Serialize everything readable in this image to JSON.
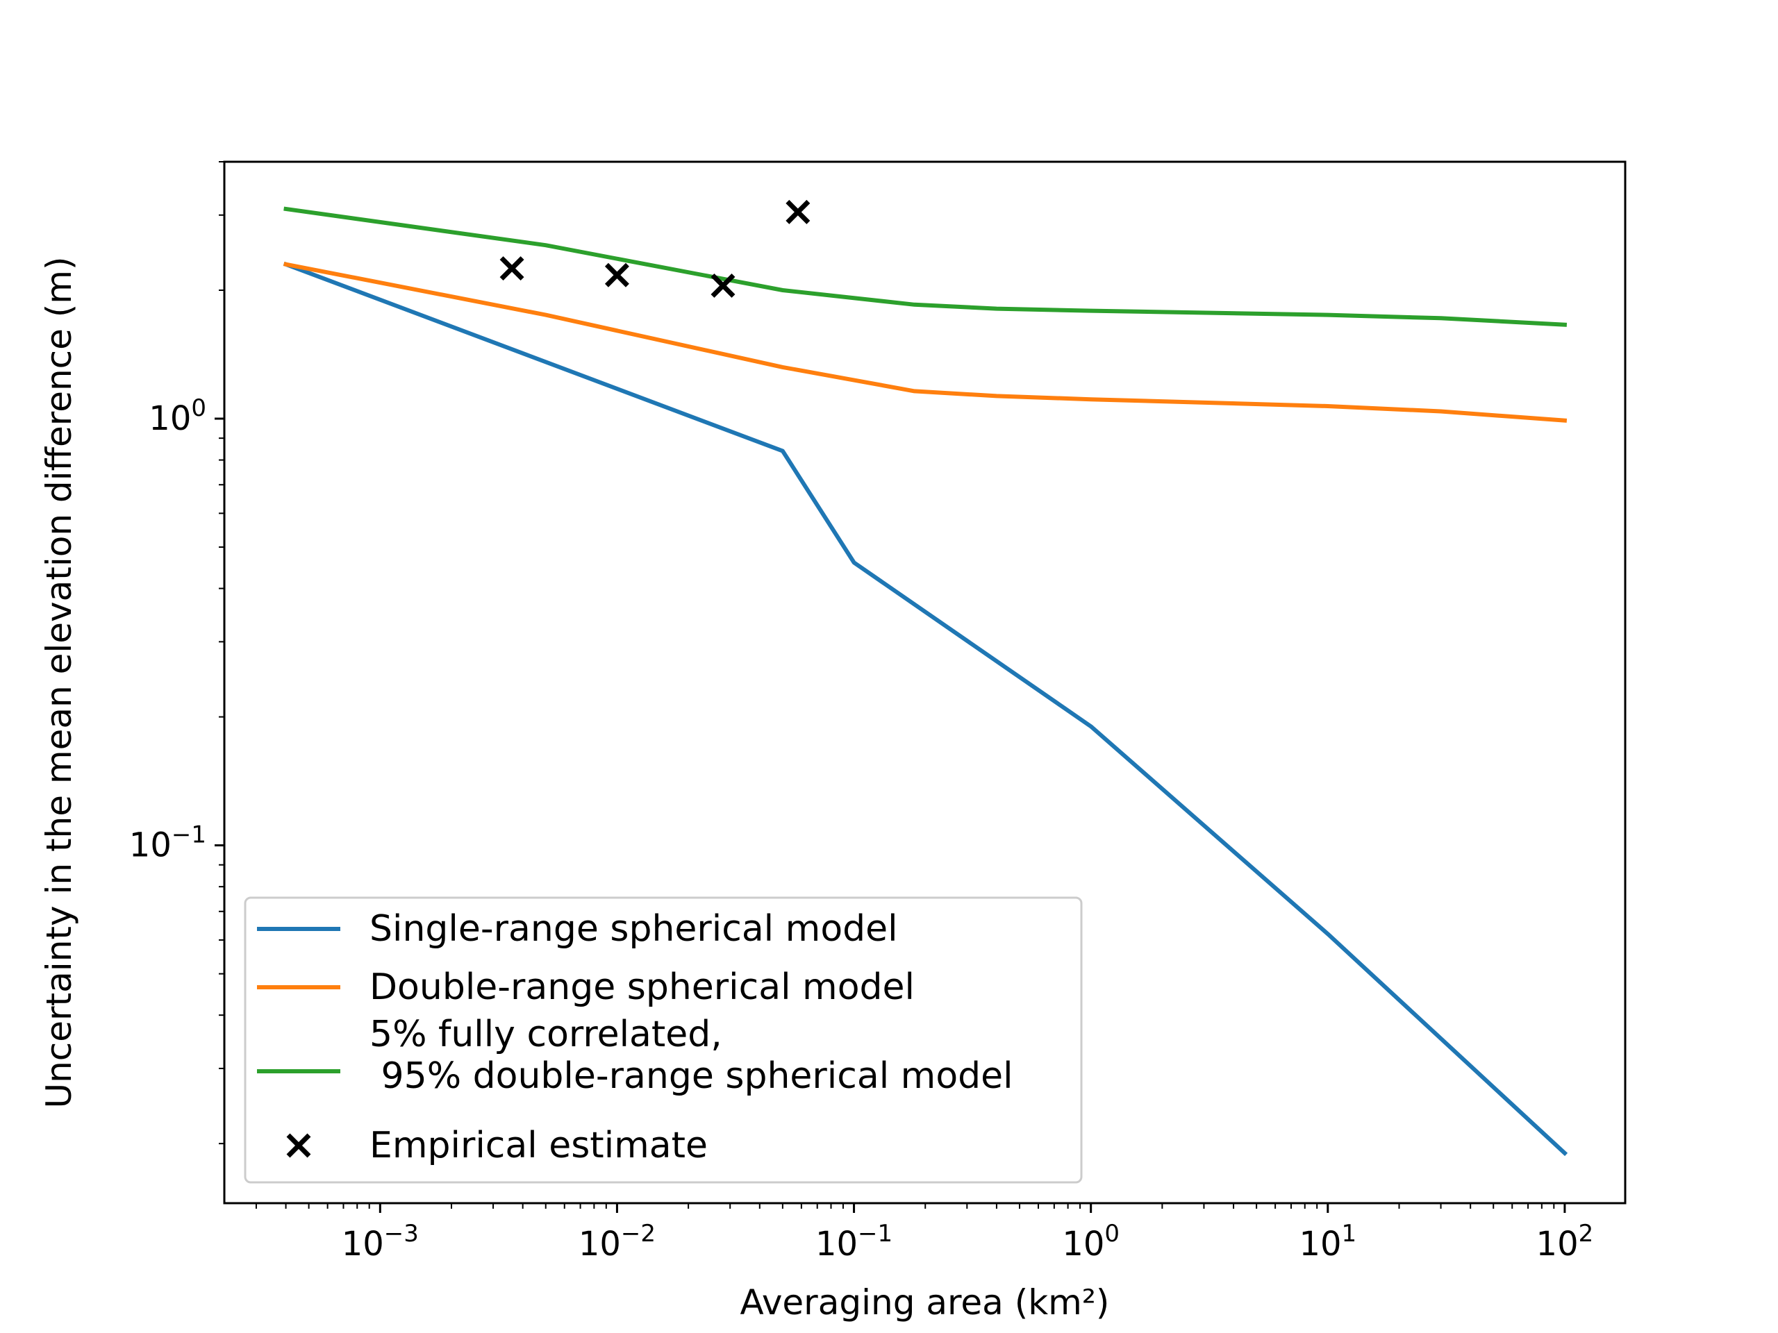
{
  "chart_data": {
    "type": "line",
    "title": "",
    "xlabel": "Averaging area (km²)",
    "ylabel": "Uncertainty in the mean elevation difference (m)",
    "xscale": "log",
    "yscale": "log",
    "xlim": [
      0.00022,
      180
    ],
    "ylim": [
      0.0145,
      4.0
    ],
    "grid": false,
    "legend_position": "lower-left",
    "x_tick_labels": [
      {
        "value": 0.001,
        "base": "10",
        "exp": "−3"
      },
      {
        "value": 0.01,
        "base": "10",
        "exp": "−2"
      },
      {
        "value": 0.1,
        "base": "10",
        "exp": "−1"
      },
      {
        "value": 1,
        "base": "10",
        "exp": "0"
      },
      {
        "value": 10,
        "base": "10",
        "exp": "1"
      },
      {
        "value": 100,
        "base": "10",
        "exp": "2"
      }
    ],
    "y_tick_labels": [
      {
        "value": 0.1,
        "base": "10",
        "exp": "−1"
      },
      {
        "value": 1,
        "base": "10",
        "exp": "0"
      }
    ],
    "series": [
      {
        "name": "Single-range spherical model",
        "kind": "line",
        "color": "#1f77b4",
        "x": [
          0.0004,
          0.05,
          0.1,
          1,
          10,
          100
        ],
        "y": [
          2.3,
          0.84,
          0.46,
          0.19,
          0.062,
          0.019
        ]
      },
      {
        "name": "Double-range spherical model",
        "kind": "line",
        "color": "#ff7f0e",
        "x": [
          0.0004,
          0.005,
          0.05,
          0.18,
          0.4,
          1,
          10,
          30,
          100
        ],
        "y": [
          2.3,
          1.75,
          1.32,
          1.16,
          1.13,
          1.11,
          1.07,
          1.04,
          0.99
        ]
      },
      {
        "name": "5% fully correlated,\n 95% double-range spherical model",
        "name_lines": [
          "5% fully correlated,",
          " 95% double-range spherical model"
        ],
        "kind": "line",
        "color": "#2ca02c",
        "x": [
          0.0004,
          0.005,
          0.05,
          0.18,
          0.4,
          1,
          10,
          30,
          100
        ],
        "y": [
          3.1,
          2.55,
          2.0,
          1.85,
          1.81,
          1.79,
          1.75,
          1.72,
          1.66
        ]
      },
      {
        "name": "Empirical estimate",
        "kind": "scatter",
        "marker": "x",
        "color": "#000000",
        "x": [
          0.0036,
          0.01,
          0.028,
          0.058
        ],
        "y": [
          2.25,
          2.17,
          2.05,
          3.05
        ]
      }
    ]
  }
}
